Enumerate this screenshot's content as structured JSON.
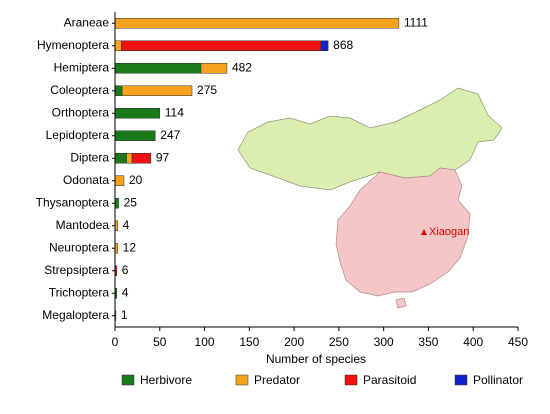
{
  "chart_data": {
    "type": "stacked_barh",
    "categories": [
      "Araneae",
      "Hymenoptera",
      "Hemiptera",
      "Coleoptera",
      "Orthoptera",
      "Lepidoptera",
      "Diptera",
      "Odonata",
      "Thysanoptera",
      "Mantodea",
      "Neuroptera",
      "Strepsiptera",
      "Trichoptera",
      "Megaloptera"
    ],
    "series": [
      {
        "name": "Herbivore",
        "color": "#1a7a1a",
        "values": [
          0,
          0,
          96,
          8,
          50,
          45,
          13,
          0,
          4,
          0,
          0,
          0,
          2,
          0
        ]
      },
      {
        "name": "Predator",
        "color": "#f5a21e",
        "values": [
          317,
          7,
          29,
          78,
          0,
          0,
          6,
          10,
          0,
          3,
          3,
          0,
          0,
          1
        ]
      },
      {
        "name": "Parasitoid",
        "color": "#ee1111",
        "values": [
          0,
          223,
          0,
          0,
          0,
          0,
          21,
          0,
          0,
          0,
          0,
          2,
          0,
          0
        ]
      },
      {
        "name": "Pollinator",
        "color": "#1122cc",
        "values": [
          0,
          8,
          0,
          0,
          0,
          0,
          0,
          0,
          0,
          0,
          0,
          0,
          0,
          0
        ]
      }
    ],
    "bar_end_labels": [
      "1111",
      "868",
      "482",
      "275",
      "114",
      "247",
      "97",
      "20",
      "25",
      "4",
      "12",
      "6",
      "4",
      "1"
    ],
    "xlabel": "Number of species",
    "xlim": [
      0,
      450
    ],
    "xticks": [
      0,
      50,
      100,
      150,
      200,
      250,
      300,
      350,
      400,
      450
    ],
    "legend": "bottom",
    "map_annotation": "Xiaogan"
  }
}
